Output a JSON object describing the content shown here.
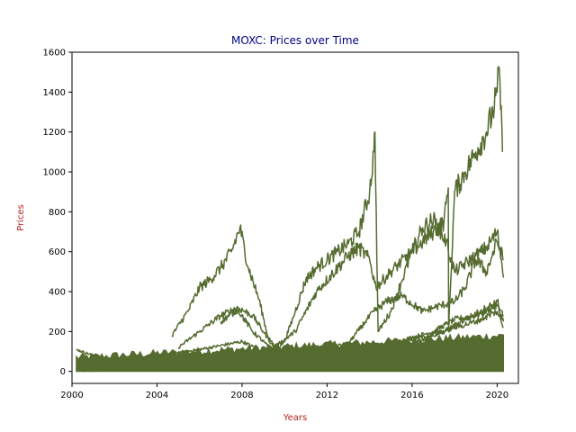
{
  "chart_data": {
    "type": "line",
    "title": "MOXC: Prices over Time",
    "xlabel": "Years",
    "ylabel": "Prices",
    "xlim": [
      2000,
      2021
    ],
    "ylim": [
      -60,
      1600
    ],
    "x_ticks": [
      2000,
      2004,
      2008,
      2012,
      2016,
      2020
    ],
    "x_tick_labels": [
      "2000",
      "2004",
      "2008",
      "2012",
      "2016",
      "2020"
    ],
    "y_ticks": [
      0,
      200,
      400,
      600,
      800,
      1000,
      1200,
      1400,
      1600
    ],
    "y_tick_labels": [
      "0",
      "200",
      "400",
      "600",
      "800",
      "1000",
      "1200",
      "1400",
      "1600"
    ],
    "grid": false,
    "legend": "none",
    "colors": {
      "line": "#556b2f",
      "title": "#00008b",
      "axis_label": "#b22222",
      "frame": "#000000"
    },
    "series": [
      {
        "x": [
          2000.2,
          2002,
          2004,
          2006,
          2008,
          2010,
          2012,
          2014,
          2016,
          2018,
          2019,
          2019.8,
          2020.1,
          2020.3
        ],
        "y": [
          20,
          15,
          25,
          35,
          45,
          50,
          60,
          70,
          80,
          90,
          100,
          110,
          95,
          80
        ]
      },
      {
        "x": [
          2000.2,
          2001,
          2002,
          2003,
          2004,
          2005,
          2006,
          2007,
          2008,
          2009,
          2010,
          2011,
          2012,
          2013,
          2014,
          2015,
          2016,
          2017,
          2018,
          2019,
          2020,
          2020.3
        ],
        "y": [
          110,
          80,
          60,
          55,
          80,
          95,
          110,
          130,
          150,
          100,
          110,
          115,
          120,
          125,
          130,
          140,
          170,
          200,
          260,
          280,
          330,
          250
        ]
      },
      {
        "x": [
          2004.7,
          2005.5,
          2006.0,
          2006.5,
          2007.0,
          2007.5,
          2007.9,
          2008.3,
          2008.8,
          2009.2,
          2009.6,
          2010.0,
          2010.5,
          2011.0,
          2011.5,
          2012.0,
          2012.5,
          2013.0,
          2013.5,
          2014.0,
          2014.2,
          2014.25,
          2014.4,
          2015.0,
          2015.5,
          2016.0,
          2016.5,
          2017.0,
          2017.5,
          2017.7,
          2017.72,
          2018.0,
          2018.5,
          2019.0,
          2019.5,
          2019.8,
          2020.0,
          2020.1,
          2020.25
        ],
        "y": [
          180,
          310,
          420,
          460,
          520,
          600,
          720,
          520,
          360,
          180,
          110,
          150,
          300,
          460,
          520,
          560,
          600,
          640,
          700,
          900,
          1100,
          1200,
          200,
          300,
          450,
          600,
          650,
          700,
          750,
          920,
          220,
          900,
          1000,
          1100,
          1200,
          1300,
          1400,
          1520,
          1100
        ]
      },
      {
        "x": [
          2005.0,
          2006.0,
          2007.0,
          2007.8,
          2008.5,
          2009.0,
          2009.5,
          2010.5,
          2011.5,
          2012.5,
          2013.0,
          2013.5,
          2014.0,
          2014.3,
          2015.0,
          2016.0,
          2016.5,
          2017.0,
          2017.6,
          2018.0,
          2019.0,
          2019.5,
          2020.0,
          2020.2,
          2020.3
        ],
        "y": [
          120,
          200,
          280,
          320,
          280,
          200,
          120,
          200,
          400,
          520,
          580,
          620,
          560,
          420,
          500,
          600,
          720,
          760,
          650,
          500,
          580,
          620,
          700,
          560,
          470
        ]
      },
      {
        "x": [
          2007.0,
          2007.8,
          2008.5,
          2009.5,
          2010.5,
          2011.5,
          2012.5,
          2013.0,
          2013.8,
          2014.2,
          2014.8,
          2015.5,
          2016.5,
          2017.0,
          2018.0,
          2018.5,
          2019.0,
          2019.5,
          2020.0,
          2020.3
        ],
        "y": [
          250,
          310,
          200,
          100,
          110,
          120,
          130,
          140,
          250,
          300,
          350,
          380,
          300,
          320,
          350,
          420,
          560,
          500,
          650,
          560
        ]
      },
      {
        "x": [
          2000.2,
          2003,
          2006,
          2009,
          2012,
          2014,
          2016,
          2017.5,
          2018.5,
          2019.2,
          2020.0,
          2020.3
        ],
        "y": [
          5,
          8,
          30,
          60,
          90,
          120,
          160,
          200,
          260,
          300,
          350,
          280
        ]
      },
      {
        "x": [
          2000.2,
          2004,
          2008,
          2010,
          2012,
          2014,
          2016,
          2017,
          2018,
          2019,
          2020,
          2020.3
        ],
        "y": [
          50,
          30,
          20,
          40,
          60,
          100,
          140,
          180,
          220,
          250,
          300,
          220
        ]
      }
    ],
    "dense_band": {
      "x_start": 2000.2,
      "x_end": 2020.3,
      "y_low": 0,
      "y_high_start": 70,
      "y_high_end": 180
    }
  }
}
